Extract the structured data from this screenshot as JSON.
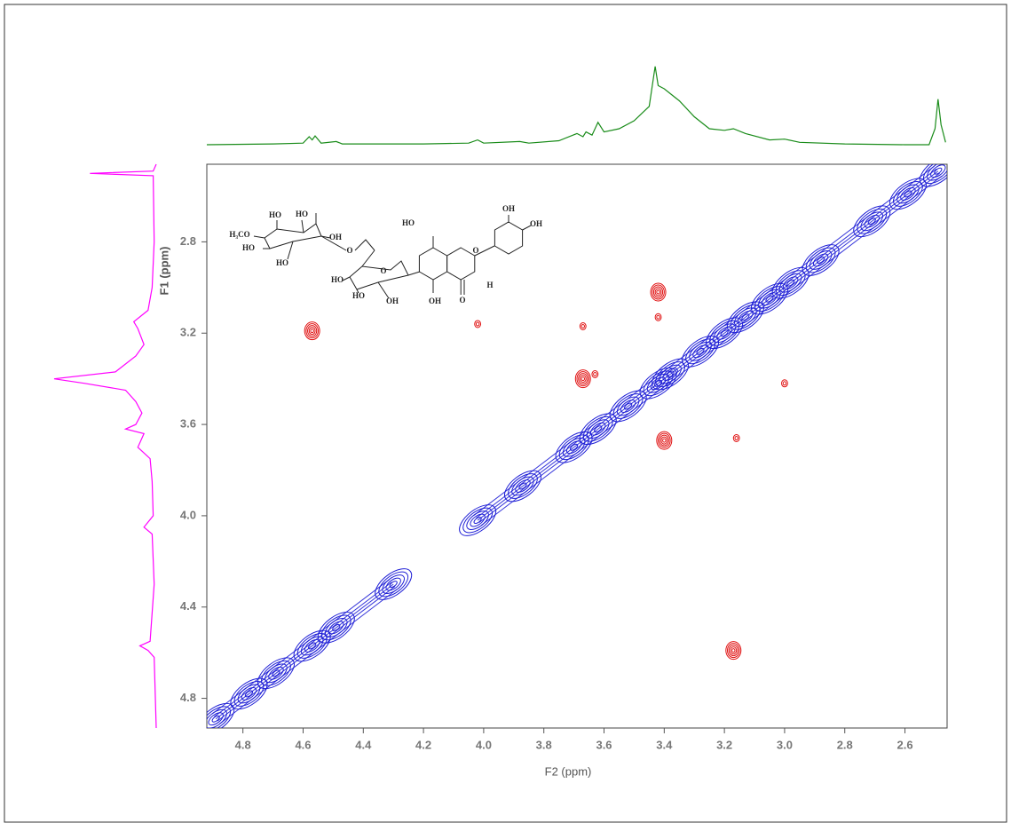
{
  "chart_data": {
    "type": "nmr2d",
    "xlabel": "F2 (ppm)",
    "ylabel": "F1 (ppm)",
    "xlim": [
      4.92,
      2.46
    ],
    "ylim": [
      2.46,
      4.93
    ],
    "xticks": [
      4.8,
      4.6,
      4.4,
      4.2,
      {
        "value": 4.0,
        "label": "4.0"
      },
      3.8,
      3.6,
      3.4,
      3.2,
      {
        "value": 3.0,
        "label": "3.0"
      },
      2.8,
      2.6
    ],
    "yticks": [
      2.8,
      3.2,
      3.6,
      {
        "value": 4.0,
        "label": "4.0"
      },
      4.4,
      4.8
    ],
    "series": [
      {
        "color": "#1f1fd6",
        "x": [
          4.89,
          4.78,
          4.69,
          4.57,
          4.49,
          4.3,
          4.02,
          3.87,
          3.7,
          3.62,
          3.52,
          3.42,
          3.38,
          3.28,
          3.2,
          3.13,
          3.05,
          2.98,
          2.88,
          2.71,
          2.59,
          2.49
        ],
        "values": [
          4.89,
          4.78,
          4.69,
          4.57,
          4.49,
          4.3,
          4.02,
          3.87,
          3.7,
          3.62,
          3.52,
          3.42,
          3.38,
          3.28,
          3.2,
          3.13,
          3.05,
          2.98,
          2.88,
          2.71,
          2.59,
          2.49
        ]
      },
      {
        "color": "#e01010",
        "x": [
          4.57,
          3.42,
          3.67,
          3.4,
          3.17,
          3.16,
          3.0,
          3.67,
          3.42,
          4.02,
          3.63
        ],
        "values": [
          3.19,
          3.02,
          3.4,
          3.67,
          4.59,
          3.66,
          3.42,
          3.17,
          3.13,
          3.16,
          3.38
        ]
      }
    ],
    "projections": [
      {
        "color": "#1a8c1a",
        "x": [
          4.92,
          4.7,
          4.6,
          4.58,
          4.57,
          4.56,
          4.54,
          4.49,
          4.47,
          4.2,
          4.05,
          4.02,
          4.0,
          3.88,
          3.85,
          3.75,
          3.69,
          3.67,
          3.66,
          3.64,
          3.62,
          3.6,
          3.55,
          3.5,
          3.45,
          3.43,
          3.42,
          3.4,
          3.35,
          3.3,
          3.25,
          3.2,
          3.17,
          3.13,
          3.05,
          3.0,
          2.95,
          2.8,
          2.6,
          2.52,
          2.5,
          2.49,
          2.48,
          2.465
        ],
        "values": [
          0,
          1,
          2,
          10,
          6,
          11,
          2,
          4,
          1,
          1,
          2,
          6,
          2,
          4,
          2,
          5,
          14,
          10,
          16,
          12,
          28,
          16,
          20,
          30,
          48,
          98,
          74,
          70,
          55,
          35,
          20,
          18,
          20,
          14,
          6,
          7,
          3,
          1,
          0,
          0,
          20,
          57,
          25,
          3
        ]
      },
      {
        "color": "#ff00ff",
        "y": [
          2.46,
          2.49,
          2.5,
          2.51,
          2.8,
          3.0,
          3.1,
          3.15,
          3.18,
          3.25,
          3.3,
          3.37,
          3.4,
          3.42,
          3.45,
          3.5,
          3.55,
          3.6,
          3.62,
          3.64,
          3.7,
          3.75,
          3.85,
          4.0,
          4.05,
          4.08,
          4.3,
          4.55,
          4.57,
          4.59,
          4.62,
          4.93
        ],
        "values": [
          0,
          3,
          65,
          3,
          2,
          4,
          8,
          22,
          18,
          12,
          20,
          40,
          100,
          70,
          30,
          20,
          14,
          20,
          30,
          12,
          18,
          6,
          4,
          3,
          12,
          4,
          2,
          6,
          16,
          8,
          2,
          0
        ]
      }
    ]
  },
  "structure_labels": [
    "H₃CO",
    "HO",
    "HO",
    "OH",
    "HO",
    "HO",
    "O",
    "HO",
    "HO",
    "OH",
    "O",
    "HO",
    "OH",
    "O",
    "O",
    "H",
    "OH",
    "OH"
  ]
}
